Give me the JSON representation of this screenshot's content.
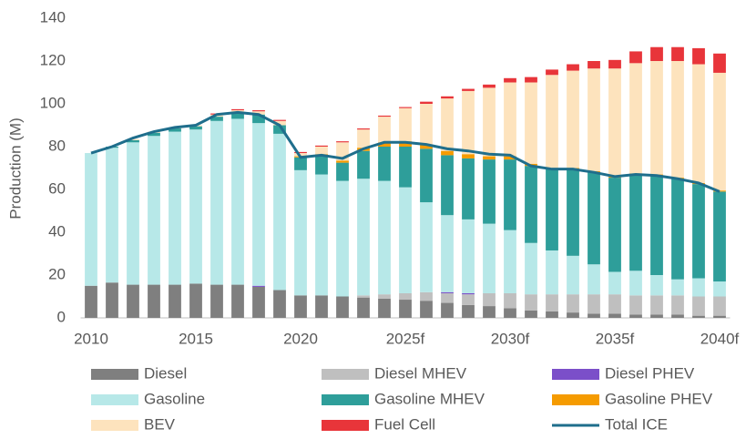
{
  "chart_data": {
    "type": "bar",
    "stacked": true,
    "y_label": "Production (M)",
    "categories": [
      "2010",
      null,
      null,
      null,
      null,
      "2015",
      null,
      null,
      null,
      null,
      "2020",
      null,
      null,
      null,
      null,
      "2025f",
      null,
      null,
      null,
      null,
      "2030f",
      null,
      null,
      null,
      null,
      "2035f",
      null,
      null,
      null,
      null,
      "2040f"
    ],
    "ylim": [
      0,
      140
    ],
    "yticks": [
      0,
      20,
      40,
      60,
      80,
      100,
      120,
      140
    ],
    "grid": false,
    "legend": "bottom",
    "series": [
      {
        "name": "Diesel",
        "color": "#7f7f7f",
        "values": [
          15,
          16.5,
          15.5,
          15.5,
          15.5,
          16,
          15.5,
          15.5,
          14.5,
          13,
          10.5,
          10.5,
          10,
          9.5,
          9,
          8.5,
          8,
          7,
          6,
          5.5,
          4.5,
          3.5,
          3,
          2.5,
          2,
          2,
          1.5,
          1.5,
          1.5,
          1,
          1
        ]
      },
      {
        "name": "Diesel MHEV",
        "color": "#bfbfbf",
        "values": [
          0,
          0,
          0,
          0,
          0,
          0,
          0,
          0,
          0,
          0,
          0,
          0,
          0,
          1,
          2,
          3,
          4,
          4.5,
          5,
          6,
          7,
          7.5,
          8,
          8.5,
          9,
          9,
          9,
          9,
          9,
          9,
          9
        ]
      },
      {
        "name": "Diesel PHEV",
        "color": "#7b4fc9",
        "values": [
          0,
          0,
          0,
          0,
          0,
          0,
          0,
          0,
          0.5,
          0,
          0,
          0,
          0,
          0,
          0,
          0,
          0,
          0.5,
          0.5,
          0,
          0,
          0,
          0,
          0,
          0,
          0,
          0,
          0,
          0,
          0,
          0
        ]
      },
      {
        "name": "Gasoline",
        "color": "#b7e8e8",
        "values": [
          62,
          63,
          66.5,
          69.5,
          71.5,
          72,
          76.5,
          77.5,
          76,
          73,
          58.5,
          56.5,
          54,
          54.5,
          53,
          49.5,
          42,
          36,
          34.5,
          32.5,
          29.5,
          24,
          20.5,
          18,
          14,
          10.5,
          11.5,
          9.5,
          7.5,
          8.5,
          7
        ]
      },
      {
        "name": "Gasoline MHEV",
        "color": "#2e9e9a",
        "values": [
          0,
          0.5,
          1,
          1.5,
          1.5,
          1.5,
          2,
          3,
          4,
          4,
          6,
          9,
          8.5,
          13,
          16,
          19,
          25,
          28,
          28.5,
          30,
          33,
          36,
          38,
          40.5,
          43,
          44,
          45,
          46.5,
          47,
          44,
          42
        ]
      },
      {
        "name": "Gasoline PHEV",
        "color": "#f59b00",
        "values": [
          0,
          0,
          0,
          0,
          0,
          0,
          0,
          0,
          0,
          0,
          0.5,
          0.5,
          1,
          1.5,
          2,
          2.5,
          2,
          2,
          2,
          1.5,
          1.5,
          1,
          0.5,
          0.5,
          0.5,
          0.5,
          0.5,
          0.5,
          0.5,
          0.5,
          0.5
        ]
      },
      {
        "name": "BEV",
        "color": "#fde3bd",
        "values": [
          0,
          0,
          0.5,
          0.5,
          0.5,
          0.5,
          1,
          1,
          1.5,
          2,
          1.5,
          3.5,
          8.5,
          8.5,
          12,
          15.5,
          19,
          24.5,
          29.5,
          32,
          34.5,
          38,
          43.5,
          45.5,
          48,
          50.5,
          51.5,
          53,
          54.5,
          55.5,
          55
        ]
      },
      {
        "name": "Fuel Cell",
        "color": "#e8353a",
        "values": [
          0,
          0,
          0,
          0,
          0,
          0,
          0.5,
          0.5,
          0.5,
          0.5,
          0.5,
          0.5,
          0.5,
          0.5,
          0.5,
          0.5,
          1,
          1,
          1,
          1.5,
          2,
          2.5,
          2.5,
          3,
          3.5,
          4,
          5.5,
          6.5,
          6.5,
          7.5,
          9
        ]
      },
      {
        "name": "Total ICE",
        "type": "line",
        "color": "#1f6e8c",
        "values": [
          77,
          80,
          84,
          87,
          89,
          90,
          95,
          96,
          95,
          90,
          75,
          76,
          74.5,
          79,
          82,
          82,
          81,
          79,
          78,
          76.5,
          76,
          71,
          69.5,
          69.5,
          68,
          66,
          67,
          66.5,
          65,
          63,
          59
        ]
      }
    ]
  }
}
